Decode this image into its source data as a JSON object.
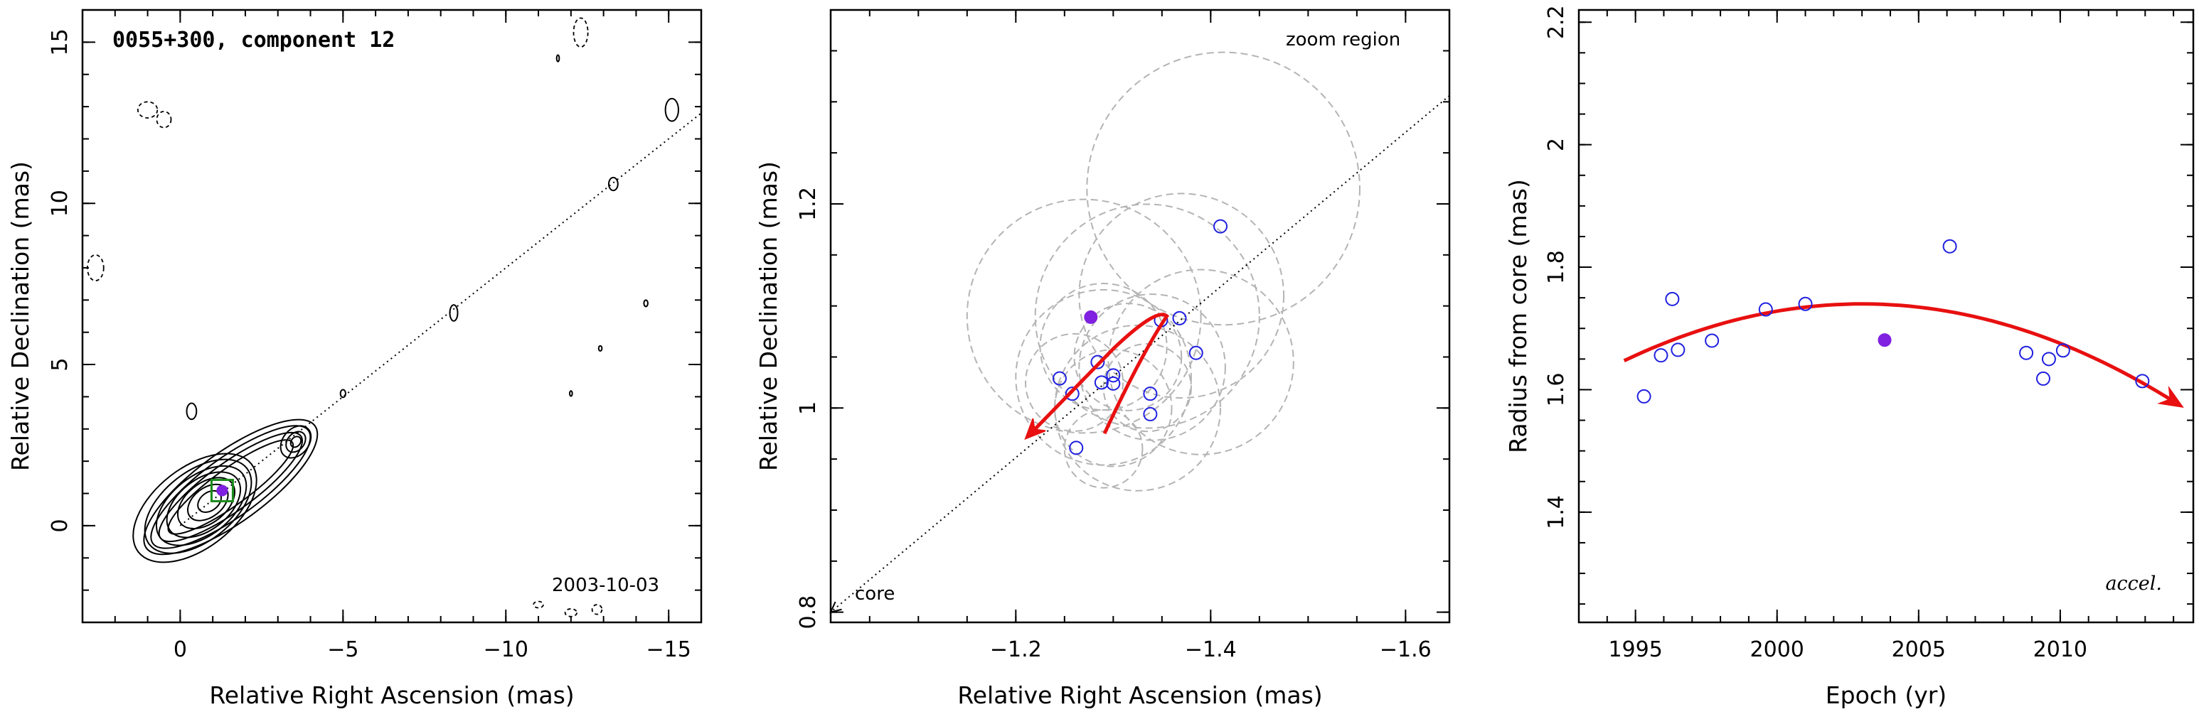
{
  "colors": {
    "accent_red": "#e81010",
    "point_open": "#2020e0",
    "point_fill": "#8020e0",
    "zoom_circles": "#b4b4b4",
    "box_green": "#1a8a1a"
  },
  "chart_data": [
    {
      "type": "scatter",
      "panel": "vlba-map",
      "title": "0055+300, component 12",
      "xlabel": "Relative Right Ascension (mas)",
      "ylabel": "Relative Declination (mas)",
      "xlim": [
        3.0,
        -16.0
      ],
      "ylim": [
        -3.0,
        16.0
      ],
      "x_ticks": [
        0,
        -5,
        -10,
        -15
      ],
      "x_tick_labels": [
        "0",
        "−5",
        "−10",
        "−15"
      ],
      "y_ticks": [
        0,
        5,
        10,
        15
      ],
      "y_tick_labels": [
        "0",
        "5",
        "10",
        "15"
      ],
      "epoch_label": "2003-10-03",
      "component_position": {
        "x": -1.29,
        "y": 1.09
      },
      "jet_axis": [
        {
          "x": 0,
          "y": 0
        },
        {
          "x": -16,
          "y": 12.8
        }
      ]
    },
    {
      "type": "scatter",
      "panel": "zoom",
      "xlabel": "Relative Right Ascension (mas)",
      "ylabel": "Relative Declination (mas)",
      "xlim": [
        -1.01,
        -1.645
      ],
      "ylim": [
        0.79,
        1.39
      ],
      "x_ticks": [
        -1.2,
        -1.4,
        -1.6
      ],
      "x_tick_labels": [
        "−1.2",
        "−1.4",
        "−1.6"
      ],
      "y_ticks": [
        0.8,
        1.0,
        1.2
      ],
      "y_tick_labels": [
        "0.8",
        "1",
        "1.2"
      ],
      "annotations": [
        "zoom region",
        "core"
      ],
      "points_open": [
        {
          "x": -1.245,
          "y": 1.029
        },
        {
          "x": -1.258,
          "y": 1.014
        },
        {
          "x": -1.262,
          "y": 0.961
        },
        {
          "x": -1.284,
          "y": 1.045
        },
        {
          "x": -1.288,
          "y": 1.025
        },
        {
          "x": -1.3,
          "y": 1.024
        },
        {
          "x": -1.3,
          "y": 1.032
        },
        {
          "x": -1.338,
          "y": 1.014
        },
        {
          "x": -1.338,
          "y": 0.994
        },
        {
          "x": -1.349,
          "y": 1.086
        },
        {
          "x": -1.368,
          "y": 1.088
        },
        {
          "x": -1.385,
          "y": 1.054
        },
        {
          "x": -1.41,
          "y": 1.178
        }
      ],
      "points_filled": [
        {
          "x": -1.277,
          "y": 1.089
        }
      ],
      "zoom_circles": [
        {
          "x": -1.413,
          "y": 1.215,
          "r": 0.14
        },
        {
          "x": -1.27,
          "y": 1.09,
          "r": 0.12
        },
        {
          "x": -1.335,
          "y": 1.09,
          "r": 0.115
        },
        {
          "x": -1.37,
          "y": 1.11,
          "r": 0.105
        },
        {
          "x": -1.39,
          "y": 1.045,
          "r": 0.095
        },
        {
          "x": -1.29,
          "y": 1.03,
          "r": 0.09
        },
        {
          "x": -1.325,
          "y": 1.0,
          "r": 0.085
        },
        {
          "x": -1.34,
          "y": 1.04,
          "r": 0.075
        },
        {
          "x": -1.29,
          "y": 1.06,
          "r": 0.065
        },
        {
          "x": -1.3,
          "y": 1.0,
          "r": 0.06
        },
        {
          "x": -1.315,
          "y": 1.05,
          "r": 0.055
        },
        {
          "x": -1.26,
          "y": 1.025,
          "r": 0.05
        },
        {
          "x": -1.335,
          "y": 1.02,
          "r": 0.045
        },
        {
          "x": -1.29,
          "y": 0.96,
          "r": 0.04
        }
      ],
      "trajectory": [
        {
          "x": -1.291,
          "y": 0.975
        },
        {
          "x": -1.33,
          "y": 1.055
        },
        {
          "x": -1.355,
          "y": 1.09
        },
        {
          "x": -1.345,
          "y": 1.092
        },
        {
          "x": -1.3,
          "y": 1.058
        },
        {
          "x": -1.21,
          "y": 0.97
        }
      ],
      "jet_axis": [
        {
          "x": -1.645,
          "y": 1.306
        },
        {
          "x": -1.01,
          "y": 0.8
        }
      ]
    },
    {
      "type": "scatter",
      "panel": "radius-vs-epoch",
      "xlabel": "Epoch (yr)",
      "ylabel": "Radius from core (mas)",
      "xlim": [
        1993.0,
        2014.7
      ],
      "ylim": [
        1.22,
        2.22
      ],
      "x_ticks": [
        1995,
        2000,
        2005,
        2010
      ],
      "x_tick_labels": [
        "1995",
        "2000",
        "2005",
        "2010"
      ],
      "y_ticks": [
        1.4,
        1.6,
        1.8,
        2.0,
        2.2
      ],
      "y_tick_labels": [
        "1.4",
        "1.6",
        "1.8",
        "2",
        "2.2"
      ],
      "annotation": "accel.",
      "points_open": [
        {
          "x": 1995.3,
          "y": 1.589
        },
        {
          "x": 1995.9,
          "y": 1.656
        },
        {
          "x": 1996.3,
          "y": 1.748
        },
        {
          "x": 1996.5,
          "y": 1.665
        },
        {
          "x": 1997.7,
          "y": 1.68
        },
        {
          "x": 1999.6,
          "y": 1.731
        },
        {
          "x": 2001.0,
          "y": 1.74
        },
        {
          "x": 2006.1,
          "y": 1.834
        },
        {
          "x": 2008.8,
          "y": 1.66
        },
        {
          "x": 2009.4,
          "y": 1.618
        },
        {
          "x": 2009.6,
          "y": 1.65
        },
        {
          "x": 2010.1,
          "y": 1.664
        },
        {
          "x": 2012.9,
          "y": 1.614
        }
      ],
      "points_filled": [
        {
          "x": 2003.8,
          "y": 1.681
        }
      ],
      "fit_curve": {
        "x_start": 1994.6,
        "x_end": 2014.1,
        "peak_x": 2003.0,
        "peak_y": 1.74,
        "end_y": 1.578,
        "start_y": 1.619
      }
    }
  ]
}
